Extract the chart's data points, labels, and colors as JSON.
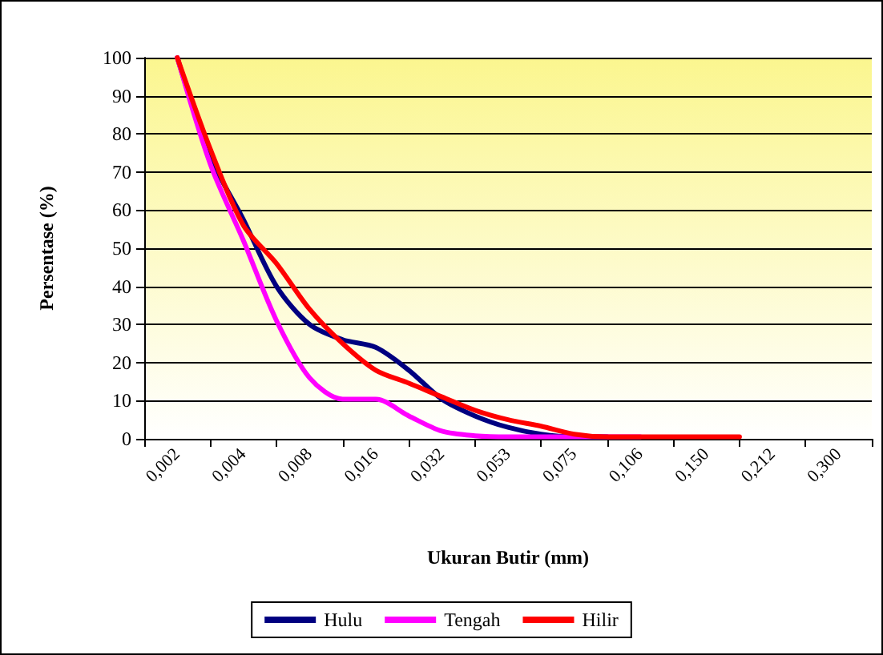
{
  "chart_data": {
    "type": "line",
    "xlabel": "Ukuran Butir (mm)",
    "ylabel": "Persentase (%)",
    "categories": [
      null,
      "0,002",
      null,
      "0,004",
      null,
      "0,008",
      null,
      "0,016",
      null,
      "0,032",
      null,
      "0,053",
      null,
      "0,075",
      null,
      "0,106",
      null,
      "0,150",
      null,
      "0,212",
      null,
      "0,300",
      null
    ],
    "series": [
      {
        "name": "Hulu",
        "color": "#000080",
        "values": [
          null,
          100,
          74,
          57.5,
          40,
          30,
          26,
          24,
          18,
          10.4,
          6,
          3,
          1.2,
          0.5,
          0.5,
          null,
          null,
          null,
          null,
          null,
          null,
          null,
          null
        ]
      },
      {
        "name": "Tengah",
        "color": "#ff00ff",
        "values": [
          null,
          100,
          72,
          52,
          31,
          16,
          10.4,
          10.4,
          6,
          2,
          0.8,
          0.5,
          0.5,
          0.5,
          0.5,
          0.5,
          null,
          null,
          null,
          null,
          null,
          null,
          null
        ]
      },
      {
        "name": "Hilir",
        "color": "#ff0000",
        "values": [
          null,
          100,
          76,
          56,
          46,
          34,
          25,
          18,
          14.6,
          11,
          7.5,
          5,
          3.3,
          1.2,
          0.5,
          0.5,
          0.5,
          0.5,
          0.5,
          null,
          null,
          null,
          null
        ]
      }
    ],
    "ylim": [
      0,
      100
    ],
    "yticks": [
      0,
      10,
      20,
      30,
      40,
      50,
      60,
      70,
      80,
      90,
      100
    ],
    "grid": "y",
    "legend": "bottom",
    "marker": "none",
    "line_style": "solid"
  }
}
